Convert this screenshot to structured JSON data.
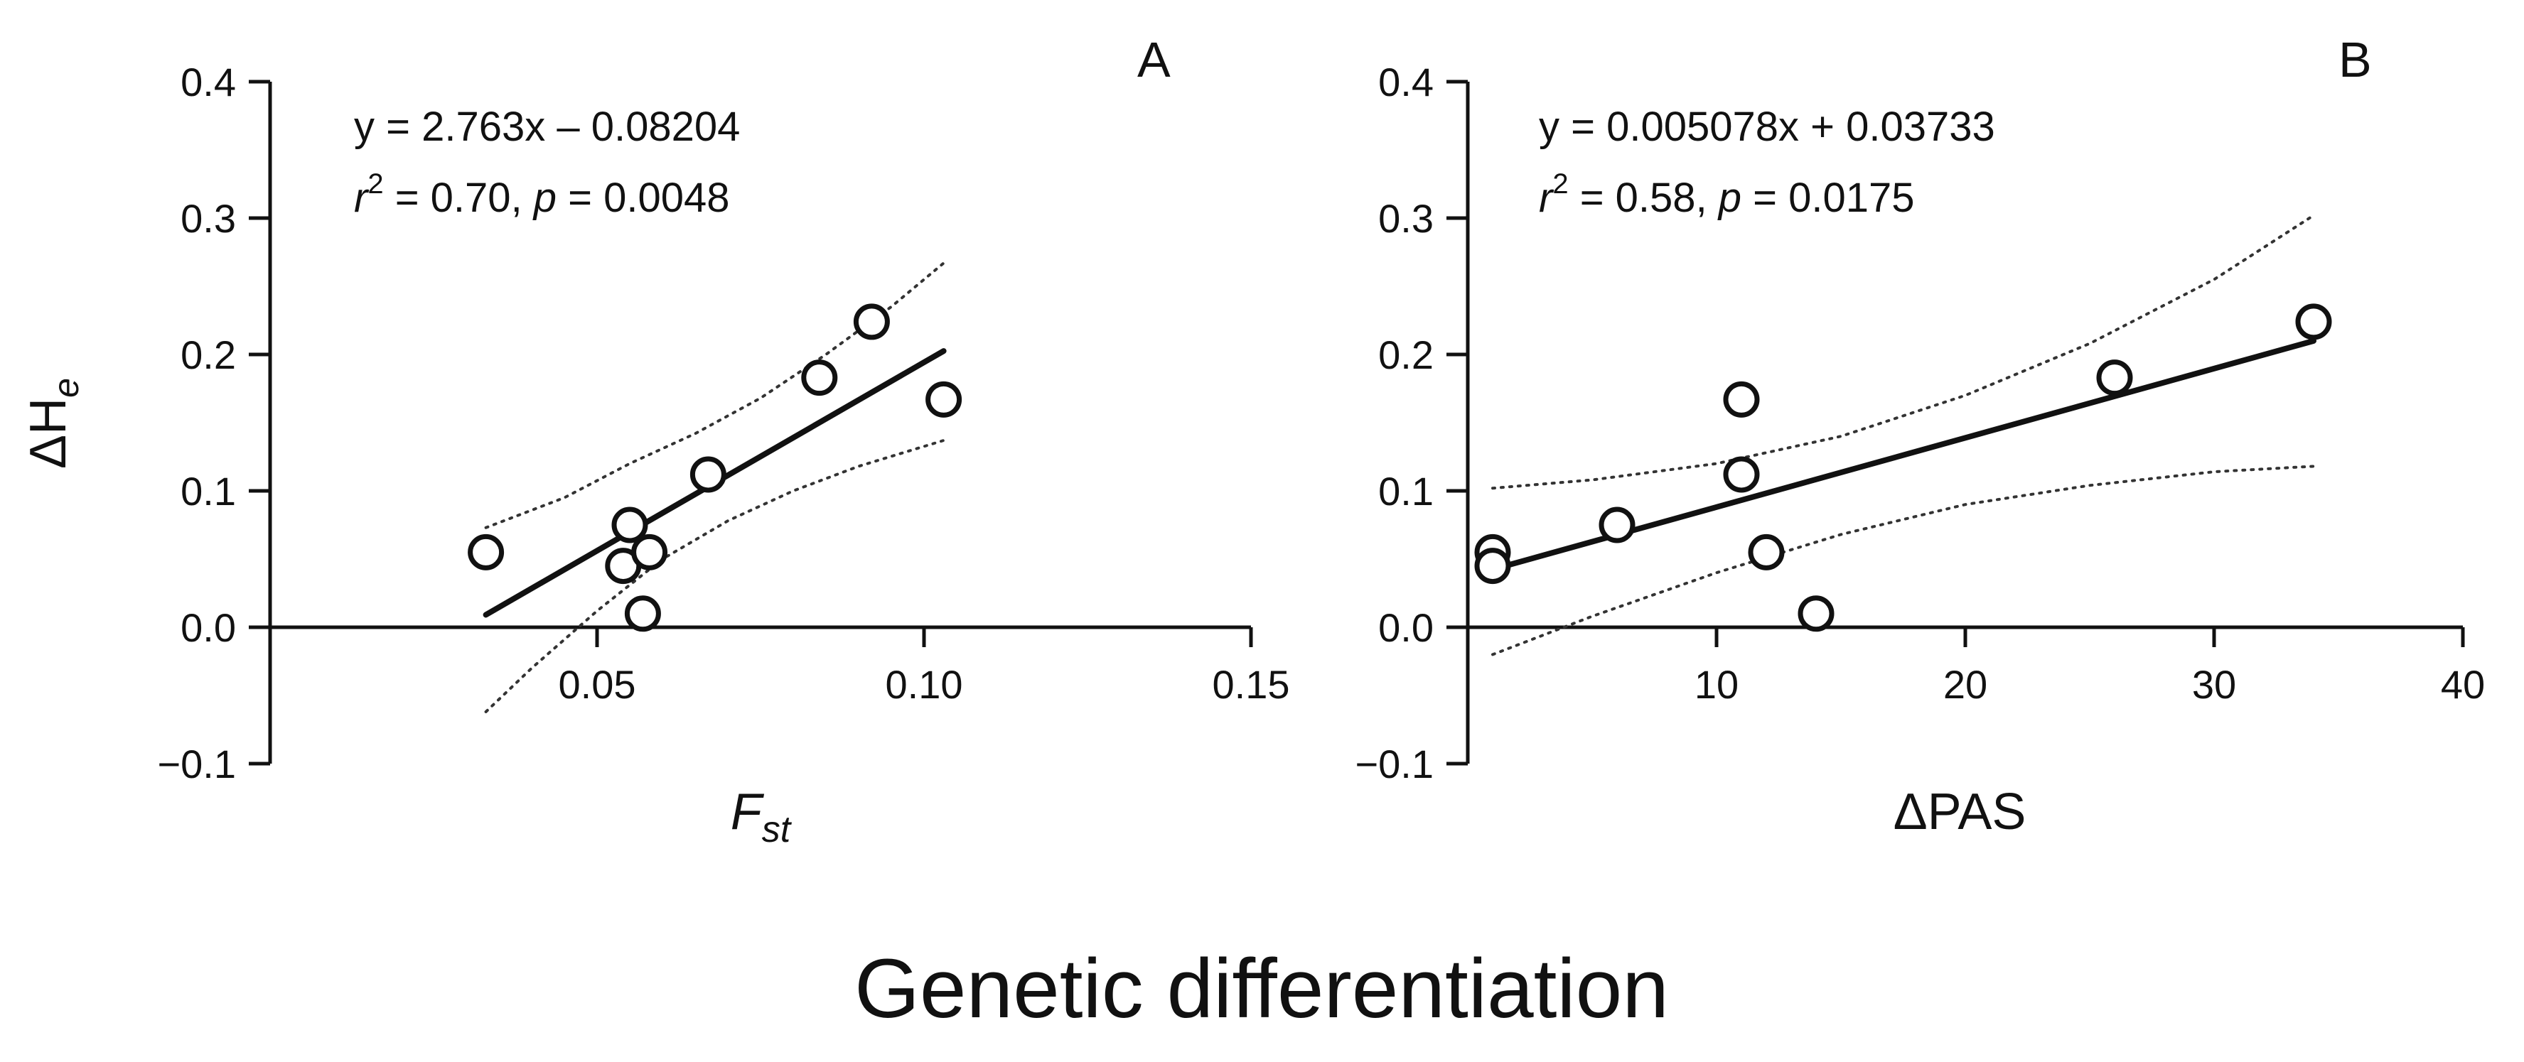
{
  "figure_title": "Genetic differentiation",
  "chart_data": [
    {
      "type": "scatter",
      "panel": "A",
      "equation": "y = 2.763x – 0.08204",
      "stats": {
        "r_prefix": "r",
        "r_sup": "2",
        "r_rest": " = 0.70, ",
        "p_prefix": "p",
        "p_rest": " = 0.0048"
      },
      "ylabel": {
        "main": "ΔH",
        "sub": "e"
      },
      "xlabel": {
        "main": "F",
        "sub": "st"
      },
      "xlim": [
        0,
        0.15
      ],
      "ylim": [
        -0.1,
        0.4
      ],
      "xticks": [
        0.05,
        0.1,
        0.15
      ],
      "xtick_labels": [
        "0.05",
        "0.10",
        "0.15"
      ],
      "yticks": [
        -0.1,
        0.0,
        0.1,
        0.2,
        0.3,
        0.4
      ],
      "ytick_labels": [
        "−0.1",
        "0.0",
        "0.1",
        "0.2",
        "0.3",
        "0.4"
      ],
      "points": [
        {
          "x": 0.033,
          "y": 0.055
        },
        {
          "x": 0.054,
          "y": 0.045
        },
        {
          "x": 0.055,
          "y": 0.075
        },
        {
          "x": 0.057,
          "y": 0.01
        },
        {
          "x": 0.058,
          "y": 0.055
        },
        {
          "x": 0.067,
          "y": 0.112
        },
        {
          "x": 0.084,
          "y": 0.183
        },
        {
          "x": 0.092,
          "y": 0.224
        },
        {
          "x": 0.103,
          "y": 0.167
        }
      ],
      "fit": {
        "slope": 2.763,
        "intercept": -0.08204,
        "x_range": [
          0.033,
          0.103
        ]
      },
      "ci_upper": [
        [
          0.033,
          0.073
        ],
        [
          0.045,
          0.095
        ],
        [
          0.055,
          0.12
        ],
        [
          0.065,
          0.142
        ],
        [
          0.075,
          0.168
        ],
        [
          0.085,
          0.2
        ],
        [
          0.095,
          0.235
        ],
        [
          0.103,
          0.267
        ]
      ],
      "ci_lower": [
        [
          0.033,
          -0.062
        ],
        [
          0.04,
          -0.03
        ],
        [
          0.05,
          0.012
        ],
        [
          0.06,
          0.05
        ],
        [
          0.07,
          0.078
        ],
        [
          0.08,
          0.1
        ],
        [
          0.09,
          0.118
        ],
        [
          0.103,
          0.137
        ]
      ],
      "grid": false
    },
    {
      "type": "scatter",
      "panel": "B",
      "equation": "y = 0.005078x + 0.03733",
      "stats": {
        "r_prefix": "r",
        "r_sup": "2",
        "r_rest": " = 0.58, ",
        "p_prefix": "p",
        "p_rest": " = 0.0175"
      },
      "xlabel": {
        "main": "ΔPAS",
        "sub": ""
      },
      "xlim": [
        0,
        40
      ],
      "ylim": [
        -0.1,
        0.4
      ],
      "xticks": [
        10,
        20,
        30,
        40
      ],
      "xtick_labels": [
        "10",
        "20",
        "30",
        "40"
      ],
      "yticks": [
        -0.1,
        0.0,
        0.1,
        0.2,
        0.3,
        0.4
      ],
      "ytick_labels": [
        "−0.1",
        "0.0",
        "0.1",
        "0.2",
        "0.3",
        "0.4"
      ],
      "points": [
        {
          "x": 1,
          "y": 0.055
        },
        {
          "x": 1,
          "y": 0.045
        },
        {
          "x": 6,
          "y": 0.075
        },
        {
          "x": 11,
          "y": 0.167
        },
        {
          "x": 11,
          "y": 0.112
        },
        {
          "x": 12,
          "y": 0.055
        },
        {
          "x": 14,
          "y": 0.01
        },
        {
          "x": 26,
          "y": 0.183
        },
        {
          "x": 34,
          "y": 0.224
        }
      ],
      "fit": {
        "slope": 0.005078,
        "intercept": 0.03733,
        "x_range": [
          1,
          34
        ]
      },
      "ci_upper": [
        [
          1,
          0.102
        ],
        [
          5,
          0.108
        ],
        [
          10,
          0.12
        ],
        [
          15,
          0.14
        ],
        [
          20,
          0.17
        ],
        [
          25,
          0.208
        ],
        [
          30,
          0.255
        ],
        [
          34,
          0.302
        ]
      ],
      "ci_lower": [
        [
          1,
          -0.02
        ],
        [
          5,
          0.008
        ],
        [
          10,
          0.04
        ],
        [
          15,
          0.068
        ],
        [
          20,
          0.09
        ],
        [
          25,
          0.104
        ],
        [
          30,
          0.114
        ],
        [
          34,
          0.118
        ]
      ],
      "grid": false
    }
  ]
}
